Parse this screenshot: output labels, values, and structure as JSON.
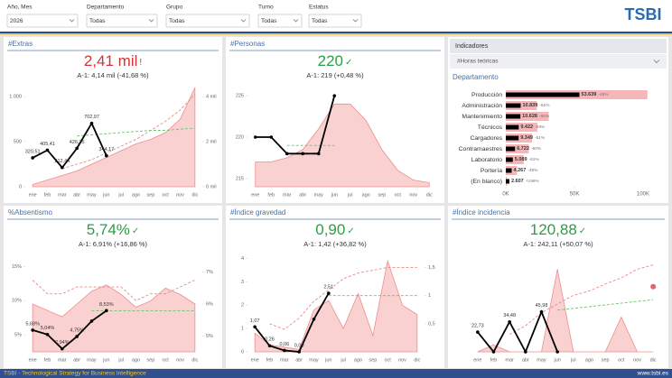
{
  "header": {
    "filters": [
      {
        "label": "Año, Mes",
        "value": "2026"
      },
      {
        "label": "Departamento",
        "value": "Todas"
      },
      {
        "label": "Grupo",
        "value": "Todas"
      },
      {
        "label": "Turno",
        "value": "Todas"
      },
      {
        "label": "Estatus",
        "value": "Todas"
      }
    ],
    "logo": "TSBI"
  },
  "indicator_panel": {
    "label": "Indicadores",
    "selected": "#Horas teóricas"
  },
  "footer": {
    "left": "TSBI - Technological Strategy for Business Intelligence",
    "right": "www.tsbi.es"
  },
  "chart_data": [
    {
      "type": "combo",
      "title": "#Extras",
      "kpi": "2,41 mil",
      "kpi_icon": "!",
      "kpi_color": "#d13438",
      "comparison": "A-1: 4,14 mil (-41,68 %)",
      "categories": [
        "ene",
        "feb",
        "mar",
        "abr",
        "may",
        "jun",
        "jul",
        "ago",
        "sep",
        "oct",
        "nov",
        "dic"
      ],
      "ylim": [
        0,
        1100
      ],
      "yticks": [
        0,
        500,
        {
          "value": 1000,
          "label": "1.000"
        }
      ],
      "y2lim": [
        0,
        4.4
      ],
      "y2ticks": [
        {
          "value": 0,
          "label": "0 mil"
        },
        {
          "value": 2,
          "label": "2 mil"
        },
        {
          "value": 4,
          "label": "4 mil"
        }
      ],
      "series": [
        {
          "kind": "area",
          "axis": "y2",
          "color": "#f08c8c",
          "values": [
            0.1,
            0.3,
            0.5,
            0.7,
            1.0,
            1.3,
            1.6,
            1.9,
            2.1,
            2.4,
            3.0,
            4.4
          ]
        },
        {
          "kind": "dashed",
          "axis": "y2",
          "color": "#e88a8a",
          "values": [
            null,
            null,
            0.8,
            1.0,
            1.2,
            1.5,
            1.8,
            2.1,
            2.5,
            2.9,
            3.4,
            4.1
          ]
        },
        {
          "kind": "dashed",
          "axis": "y2",
          "color": "#6cc36c",
          "values": [
            null,
            null,
            null,
            2.25,
            2.3,
            2.35,
            2.4,
            2.45,
            2.5,
            2.5,
            2.55,
            2.6
          ]
        },
        {
          "kind": "line",
          "color": "#000000",
          "values": [
            320.51,
            405.41,
            212.44,
            426.35,
            702.97,
            344.17,
            null,
            null,
            null,
            null,
            null,
            null
          ],
          "value_labels": [
            "320,51",
            "405,41",
            "212,44",
            "426,35",
            "702,97",
            "344,17",
            null,
            null,
            null,
            null,
            null,
            null
          ]
        }
      ]
    },
    {
      "type": "combo",
      "title": "#Personas",
      "kpi": "220",
      "kpi_icon": "✓",
      "kpi_color": "#2e9e44",
      "comparison": "A-1: 219 (+0,48 %)",
      "categories": [
        "ene",
        "feb",
        "mar",
        "abr",
        "may",
        "jun",
        "jul",
        "ago",
        "sep",
        "oct",
        "nov",
        "dic"
      ],
      "ylim": [
        214,
        226
      ],
      "yticks": [
        215,
        220,
        225
      ],
      "series": [
        {
          "kind": "area",
          "color": "#f08c8c",
          "values": [
            217,
            217,
            217.5,
            218.5,
            221,
            224,
            224,
            222,
            218.5,
            216,
            214.8,
            214.5
          ]
        },
        {
          "kind": "dashed",
          "color": "#6cc36c",
          "values": [
            null,
            null,
            219,
            219,
            219,
            219,
            null,
            null,
            null,
            null,
            null,
            null
          ]
        },
        {
          "kind": "line",
          "color": "#000000",
          "values": [
            220,
            220,
            218,
            218,
            218,
            225,
            null,
            null,
            null,
            null,
            null,
            null
          ]
        }
      ]
    },
    {
      "type": "combo",
      "title": "%Absentismo",
      "kpi": "5,74%",
      "kpi_icon": "✓",
      "kpi_color": "#2e9e44",
      "comparison": "A-1: 6,91% (+16,86 %)",
      "categories": [
        "ene",
        "feb",
        "mar",
        "abr",
        "may",
        "jun",
        "jul",
        "ago",
        "sep",
        "oct",
        "nov",
        "dic"
      ],
      "ylim": [
        2.5,
        16.5
      ],
      "yticks": [
        {
          "value": 5,
          "label": "5%"
        },
        {
          "value": 10,
          "label": "10%"
        },
        {
          "value": 15,
          "label": "15%"
        }
      ],
      "y2lim": [
        4.5,
        7.5
      ],
      "y2ticks": [
        {
          "value": 5,
          "label": "5%"
        },
        {
          "value": 6,
          "label": "6%"
        },
        {
          "value": 7,
          "label": "7%"
        }
      ],
      "series": [
        {
          "kind": "area",
          "axis": "y2",
          "color": "#f08c8c",
          "values": [
            6.0,
            5.8,
            5.6,
            6.0,
            6.4,
            6.6,
            6.3,
            5.9,
            6.1,
            6.5,
            6.3,
            6.0
          ]
        },
        {
          "kind": "dashed",
          "color": "#e88a8a",
          "values": [
            13,
            11,
            11,
            12,
            12,
            12,
            12,
            10,
            11,
            11,
            12,
            13
          ]
        },
        {
          "kind": "dashed",
          "color": "#6cc36c",
          "values": [
            null,
            null,
            null,
            null,
            8.5,
            8.5,
            8.5,
            8.5,
            8.5,
            8.5,
            8.5,
            8.5
          ]
        },
        {
          "kind": "line",
          "color": "#000000",
          "values": [
            5.68,
            5.04,
            2.94,
            4.75,
            7.0,
            8.53,
            null,
            null,
            null,
            null,
            null,
            null
          ],
          "value_labels": [
            "5,68%",
            "5,04%",
            "2,94%",
            "4,75%",
            null,
            "8,53%",
            null,
            null,
            null,
            null,
            null,
            null
          ]
        }
      ]
    },
    {
      "type": "combo",
      "title": "#Índice gravedad",
      "kpi": "0,90",
      "kpi_icon": "✓",
      "kpi_color": "#2e9e44",
      "comparison": "A-1: 1,42 (+36,82 %)",
      "categories": [
        "ene",
        "feb",
        "mar",
        "abr",
        "may",
        "jun",
        "jul",
        "ago",
        "sep",
        "oct",
        "nov",
        "dic"
      ],
      "ylim": [
        0,
        4.1
      ],
      "yticks": [
        0,
        1,
        2,
        3,
        4
      ],
      "y2lim": [
        0,
        1.7
      ],
      "y2ticks": [
        {
          "value": 0.5,
          "label": "0,5"
        },
        1,
        {
          "value": 1.5,
          "label": "1,5"
        }
      ],
      "series": [
        {
          "kind": "area",
          "color": "#f08c8c",
          "values": [
            0.8,
            0.3,
            0.2,
            0.1,
            1.8,
            2.2,
            1.0,
            2.5,
            0.7,
            3.9,
            2.0,
            1.6
          ]
        },
        {
          "kind": "dashed",
          "axis": "y2",
          "color": "#e88a8a",
          "values": [
            null,
            0.5,
            0.4,
            0.6,
            0.9,
            1.1,
            1.3,
            1.4,
            1.45,
            1.5,
            1.5,
            1.5
          ]
        },
        {
          "kind": "dashed",
          "axis": "y2",
          "color": "#6cc36c",
          "values": [
            null,
            null,
            null,
            null,
            null,
            1.0,
            1.0,
            1.0,
            1.0,
            1.0,
            1.0,
            1.0
          ]
        },
        {
          "kind": "line",
          "color": "#000000",
          "values": [
            1.07,
            0.26,
            0.06,
            0.0,
            1.4,
            2.51,
            null,
            null,
            null,
            null,
            null,
            null
          ],
          "value_labels": [
            "1,07",
            "0,26",
            "0,06",
            "0,00",
            null,
            "2,51",
            null,
            null,
            null,
            null,
            null,
            null
          ]
        }
      ]
    },
    {
      "type": "combo",
      "title": "#Índice incidencia",
      "kpi": "120,88",
      "kpi_icon": "✓",
      "kpi_color": "#2e9e44",
      "comparison": "A-1: 242,11 (+50,07 %)",
      "categories": [
        "ene",
        "feb",
        "mar",
        "abr",
        "may",
        "jun",
        "jul",
        "ago",
        "sep",
        "oct",
        "nov",
        "dic"
      ],
      "ylim": [
        0,
        110
      ],
      "yticks": [],
      "series": [
        {
          "kind": "area",
          "color": "#f08c8c",
          "values": [
            0,
            8,
            0,
            0,
            0,
            95,
            0,
            0,
            0,
            40,
            0,
            0
          ]
        },
        {
          "kind": "dashed",
          "color": "#e88a8a",
          "values": [
            null,
            null,
            20,
            30,
            45,
            55,
            65,
            70,
            78,
            85,
            95,
            100
          ]
        },
        {
          "kind": "dashed",
          "color": "#6cc36c",
          "values": [
            null,
            null,
            null,
            null,
            null,
            48,
            50,
            52,
            54,
            56,
            58,
            60
          ]
        },
        {
          "kind": "point",
          "color": "#e8606a",
          "values": [
            null,
            null,
            null,
            null,
            null,
            null,
            null,
            null,
            null,
            null,
            null,
            75
          ]
        },
        {
          "kind": "line",
          "color": "#000000",
          "values": [
            22.73,
            0,
            34.48,
            0,
            45.98,
            0,
            null,
            null,
            null,
            null,
            null,
            null
          ],
          "value_labels": [
            "22,73",
            null,
            "34,48",
            null,
            "45,98",
            null,
            null,
            null,
            null,
            null,
            null,
            null
          ]
        }
      ]
    },
    {
      "type": "hbar",
      "title": "Departamento",
      "categories": [
        "Producción",
        "Administración",
        "Mantenimiento",
        "Técnicos",
        "Cargadores",
        "Contramaestres",
        "Laboratorio",
        "Portería",
        "(En blanco)"
      ],
      "xlim": [
        0,
        100000
      ],
      "xticks": [
        {
          "value": 0,
          "label": "0K"
        },
        {
          "value": 50000,
          "label": "50K"
        },
        {
          "value": 100000,
          "label": "100K"
        }
      ],
      "series": [
        {
          "color": "#f4b6b8",
          "values": [
            103152,
            22581,
            31259,
            22980,
            19080,
            16805,
            13049,
            8206,
            881
          ]
        },
        {
          "color": "#000000",
          "values": [
            53639,
            10839,
            10628,
            9422,
            9349,
            6722,
            5089,
            4267,
            2607
          ],
          "value_labels": [
            "53.639",
            "10.839",
            "10.628",
            "9.422",
            "9.349",
            "6.722",
            "5.089",
            "4.267",
            "2.607"
          ]
        }
      ],
      "change_labels": [
        "-48%",
        "-52%",
        "-66%",
        "-59%",
        "-51%",
        "-60%",
        "-61%",
        "-48%",
        "+196%"
      ]
    }
  ]
}
